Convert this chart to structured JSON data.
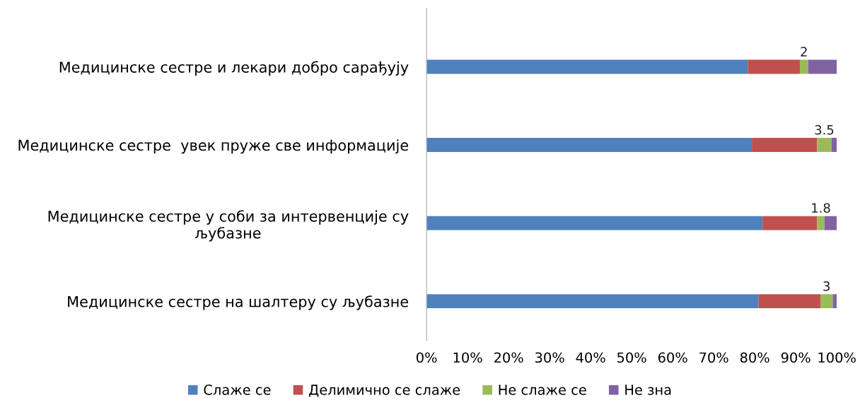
{
  "chart_data": {
    "type": "bar",
    "orientation": "horizontal",
    "stacked": true,
    "categories": [
      "Медицинске сестре и лекари добро сарађују",
      "Медицинске сестре  увек пруже све информације",
      "Медицинске сестре у соби за интервенције су\nљубазне",
      "Медицинске сестре на шалтеру су љубазне"
    ],
    "series": [
      {
        "name": "Слаже се",
        "color": "#4f81bd",
        "values": [
          78.3,
          79.3,
          81.9,
          80.9
        ]
      },
      {
        "name": "Делимично се слаже",
        "color": "#c0504d",
        "values": [
          12.7,
          15.9,
          13.3,
          15.1
        ]
      },
      {
        "name": "Не слаже се",
        "color": "#9bbb59",
        "values": [
          2,
          3.5,
          1.8,
          3
        ],
        "value_labels": [
          "2",
          "3.5",
          "1.8",
          "3"
        ]
      },
      {
        "name": "Не зна",
        "color": "#8064a2",
        "values": [
          7,
          1.3,
          3,
          1
        ]
      }
    ],
    "xlim": [
      0,
      100
    ],
    "xticks": [
      {
        "value": 0,
        "label": "0%"
      },
      {
        "value": 10,
        "label": "10%"
      },
      {
        "value": 20,
        "label": "20%"
      },
      {
        "value": 30,
        "label": "30%"
      },
      {
        "value": 40,
        "label": "40%"
      },
      {
        "value": 50,
        "label": "50%"
      },
      {
        "value": 60,
        "label": "60%"
      },
      {
        "value": 70,
        "label": "70%"
      },
      {
        "value": 80,
        "label": "80%"
      },
      {
        "value": 90,
        "label": "90%"
      },
      {
        "value": 100,
        "label": "100%"
      }
    ],
    "grid": false,
    "legend": "bottom"
  }
}
